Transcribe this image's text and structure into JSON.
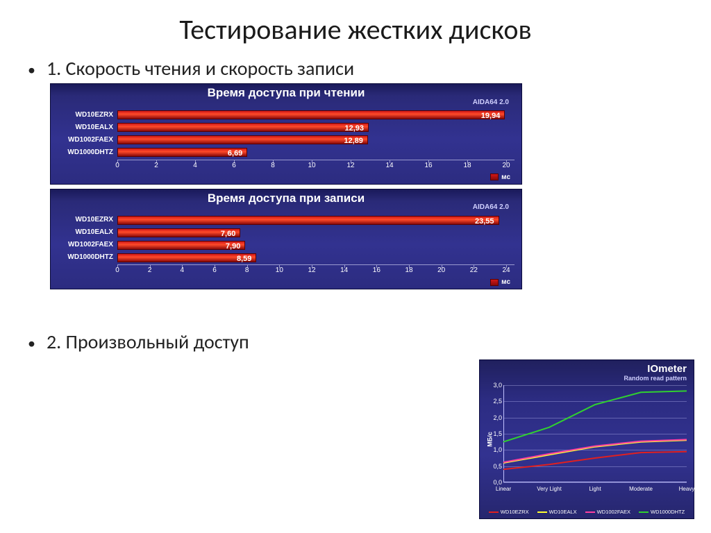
{
  "slide": {
    "title": "Тестирование жестких дисков",
    "bullet1": "1. Скорость чтения и скорость записи",
    "bullet2": "2. Произвольный доступ"
  },
  "barcharts": {
    "panel_bg": "#2c2c80",
    "bar_gradient": [
      "#d01818",
      "#ff4a2a",
      "#8a0a0a"
    ],
    "bar_border": "#5a0000",
    "axis_color": "#9a9ad0",
    "text_color": "#ffffff",
    "label_fontsize": 10,
    "value_fontsize": 11,
    "title_fontsize": 17,
    "read": {
      "title": "Время доступа при чтении",
      "subtitle": "AIDA64 2.0",
      "xmax": 20,
      "xtick_step": 2,
      "legend": "мс",
      "items": [
        {
          "label": "WD10EZRX",
          "value": 19.94
        },
        {
          "label": "WD10EALX",
          "value": 12.93
        },
        {
          "label": "WD1002FAEX",
          "value": 12.89
        },
        {
          "label": "WD1000DHTZ",
          "value": 6.69
        }
      ]
    },
    "write": {
      "title": "Время доступа при записи",
      "subtitle": "AIDA64 2.0",
      "xmax": 24,
      "xtick_step": 2,
      "legend": "мс",
      "items": [
        {
          "label": "WD10EZRX",
          "value": 23.55
        },
        {
          "label": "WD10EALX",
          "value": 7.6
        },
        {
          "label": "WD1002FAEX",
          "value": 7.9
        },
        {
          "label": "WD1000DHTZ",
          "value": 8.59
        }
      ]
    }
  },
  "linechart": {
    "title": "IOmeter",
    "subtitle": "Random read pattern",
    "ylabel": "МБ/с",
    "ymin": 0,
    "ymax": 3.0,
    "ytick_step": 0.5,
    "x_categories": [
      "Linear",
      "Very Light",
      "Light",
      "Moderate",
      "Heavy"
    ],
    "grid_color": "rgba(200,200,255,0.35)",
    "bg": "#2c2c82",
    "line_width": 2,
    "series": [
      {
        "name": "WD10EZRX",
        "color": "#e02020",
        "values": [
          0.4,
          0.55,
          0.75,
          0.92,
          0.95
        ]
      },
      {
        "name": "WD10EALX",
        "color": "#ffff30",
        "values": [
          0.6,
          0.85,
          1.1,
          1.25,
          1.3
        ]
      },
      {
        "name": "WD1002FAEX",
        "color": "#ff40a0",
        "values": [
          0.62,
          0.88,
          1.12,
          1.27,
          1.32
        ]
      },
      {
        "name": "WD1000DHTZ",
        "color": "#30d030",
        "values": [
          1.25,
          1.7,
          2.4,
          2.78,
          2.82
        ]
      }
    ]
  }
}
